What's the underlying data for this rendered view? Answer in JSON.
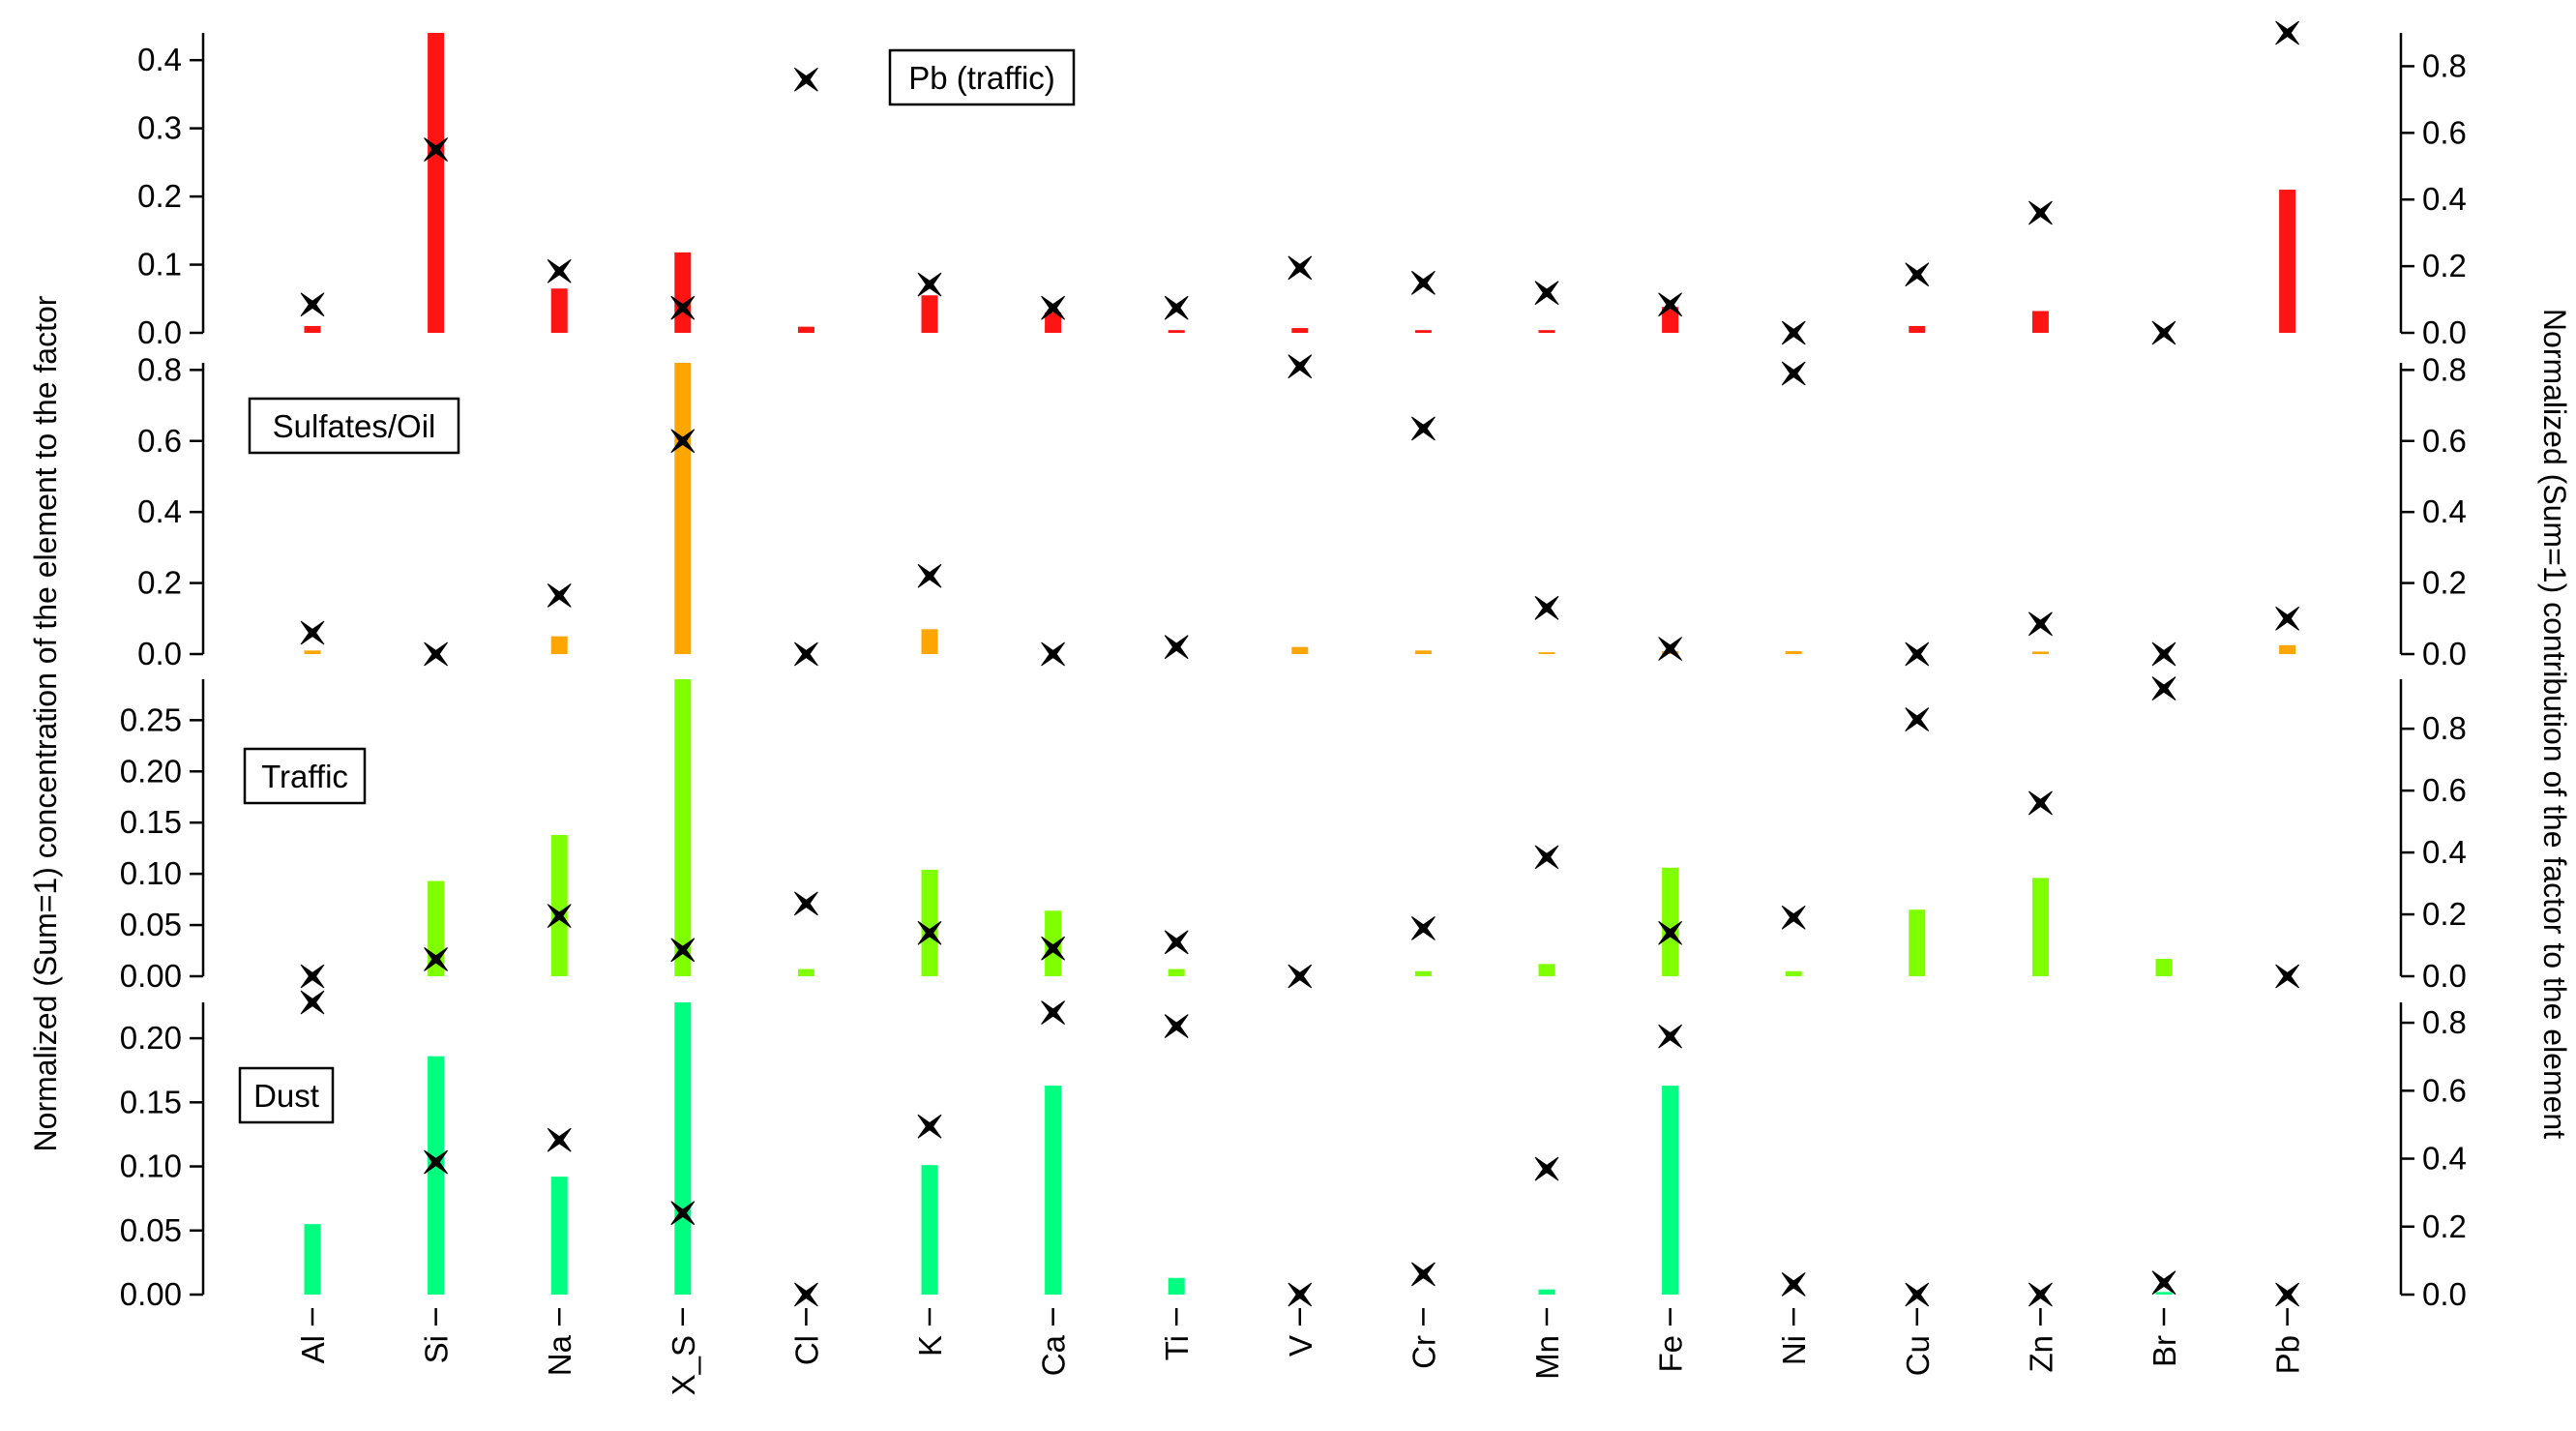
{
  "chart_data": {
    "type": "bar",
    "categories": [
      "Al",
      "Si",
      "Na",
      "X_S",
      "Cl",
      "K",
      "Ca",
      "Ti",
      "V",
      "Cr",
      "Mn",
      "Fe",
      "Ni",
      "Cu",
      "Zn",
      "Br",
      "Pb"
    ],
    "left_axis_title": "Normalized (Sum=1) concentration of the element to the factor",
    "right_axis_title": "Normalized (Sum=1) contribution of the factor to the element",
    "marker_symbol": "✦",
    "panels": [
      {
        "label": "Pb (traffic)",
        "color": "#ff1414",
        "left_ylim": [
          0,
          0.44
        ],
        "left_ticks": [
          "0.0",
          "0.1",
          "0.2",
          "0.3",
          "0.4"
        ],
        "right_ylim": [
          0,
          0.9
        ],
        "right_ticks": [
          "0.0",
          "0.2",
          "0.4",
          "0.6",
          "0.8"
        ],
        "bars": [
          0.01,
          0.44,
          0.065,
          0.118,
          0.009,
          0.055,
          0.03,
          0.004,
          0.007,
          0.004,
          0.004,
          0.038,
          0.0,
          0.01,
          0.032,
          0.0,
          0.21
        ],
        "markers": [
          0.085,
          0.55,
          0.185,
          0.075,
          0.76,
          0.145,
          0.075,
          0.075,
          0.195,
          0.15,
          0.12,
          0.085,
          0.0,
          0.175,
          0.36,
          0.0,
          0.9
        ]
      },
      {
        "label": "Sulfates/Oil",
        "color": "#ffa500",
        "left_ylim": [
          0,
          0.82
        ],
        "left_ticks": [
          "0.0",
          "0.2",
          "0.4",
          "0.6",
          "0.8"
        ],
        "right_ylim": [
          0,
          0.82
        ],
        "right_ticks": [
          "0.0",
          "0.2",
          "0.4",
          "0.6",
          "0.8"
        ],
        "bars": [
          0.01,
          0.0,
          0.05,
          0.82,
          0.0,
          0.07,
          0.0,
          0.0,
          0.02,
          0.01,
          0.005,
          0.008,
          0.008,
          0.0,
          0.007,
          0.0,
          0.025
        ],
        "markers": [
          0.06,
          0.0,
          0.165,
          0.6,
          0.0,
          0.22,
          0.0,
          0.02,
          0.81,
          0.635,
          0.13,
          0.015,
          0.79,
          0.0,
          0.085,
          0.0,
          0.1
        ]
      },
      {
        "label": "Traffic",
        "color": "#80ff00",
        "left_ylim": [
          0,
          0.29
        ],
        "left_ticks": [
          "0.00",
          "0.05",
          "0.10",
          "0.15",
          "0.20",
          "0.25"
        ],
        "right_ylim": [
          0,
          0.96
        ],
        "right_ticks": [
          "0.0",
          "0.2",
          "0.4",
          "0.6",
          "0.8"
        ],
        "bars": [
          0.0,
          0.093,
          0.138,
          0.29,
          0.007,
          0.104,
          0.064,
          0.007,
          0.0,
          0.005,
          0.012,
          0.106,
          0.005,
          0.065,
          0.096,
          0.017,
          0.0
        ],
        "markers": [
          0.0,
          0.055,
          0.195,
          0.085,
          0.235,
          0.14,
          0.09,
          0.11,
          0.0,
          0.155,
          0.385,
          0.14,
          0.19,
          0.83,
          0.56,
          0.93,
          0.0
        ]
      },
      {
        "label": "Dust",
        "color": "#00ff80",
        "left_ylim": [
          0,
          0.228
        ],
        "left_ticks": [
          "0.00",
          "0.05",
          "0.10",
          "0.15",
          "0.20"
        ],
        "right_ylim": [
          0,
          0.86
        ],
        "right_ticks": [
          "0.0",
          "0.2",
          "0.4",
          "0.6",
          "0.8"
        ],
        "bars": [
          0.055,
          0.186,
          0.092,
          0.228,
          0.0,
          0.101,
          0.163,
          0.013,
          0.0,
          0.0,
          0.004,
          0.163,
          0.0,
          0.0,
          0.0,
          0.002,
          0.0
        ],
        "markers": [
          0.86,
          0.39,
          0.455,
          0.24,
          0.0,
          0.495,
          0.83,
          0.79,
          0.0,
          0.06,
          0.37,
          0.76,
          0.03,
          0.0,
          0.0,
          0.035,
          0.0
        ]
      }
    ]
  }
}
